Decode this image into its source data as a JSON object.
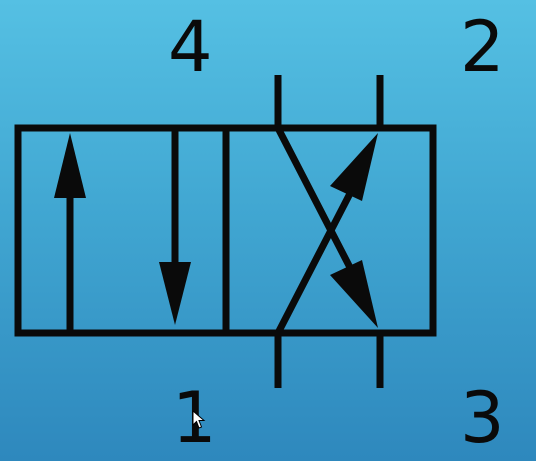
{
  "diagram": {
    "type": "directional control valve symbol",
    "positions": 2,
    "ports": {
      "top_left": "4",
      "top_right": "2",
      "bottom_left": "1",
      "bottom_right": "3"
    }
  },
  "colors": {
    "background_top": "#55c0e3",
    "background_bottom": "#2e88bd",
    "stroke": "#0a0a0a"
  }
}
